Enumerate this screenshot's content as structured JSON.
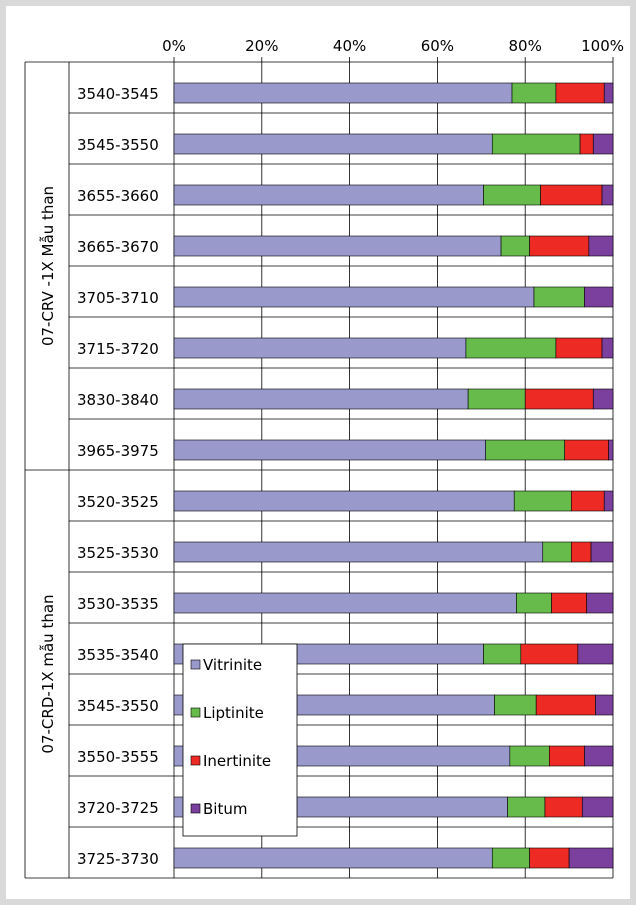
{
  "chart_data": {
    "type": "bar",
    "orientation": "horizontal",
    "stacked": true,
    "percent": true,
    "x_ticks": [
      "0%",
      "20%",
      "40%",
      "60%",
      "80%",
      "100%"
    ],
    "xlim": [
      0,
      100
    ],
    "grid": true,
    "legend_position": "bottom-left",
    "groups": [
      {
        "label": "07-CRV -1X Mẫu than",
        "start": 0,
        "count": 8
      },
      {
        "label": "07-CRD-1X mẫu than",
        "start": 8,
        "count": 8
      }
    ],
    "categories": [
      "3540-3545",
      "3545-3550",
      "3655-3660",
      "3665-3670",
      "3705-3710",
      "3715-3720",
      "3830-3840",
      "3965-3975",
      "3520-3525",
      "3525-3530",
      "3530-3535",
      "3535-3540",
      "3545-3550",
      "3550-3555",
      "3720-3725",
      "3725-3730"
    ],
    "series": [
      {
        "name": "Vitrinite",
        "color": "#9999cc",
        "values": [
          77,
          72.5,
          70.5,
          74.5,
          82,
          66.5,
          67,
          71,
          77.5,
          84,
          78,
          70.5,
          73,
          76.5,
          76,
          72.5
        ]
      },
      {
        "name": "Liptinite",
        "color": "#66bb4a",
        "values": [
          10,
          20,
          13,
          6.5,
          11.5,
          20.5,
          13,
          18,
          13,
          6.5,
          8,
          8.5,
          9.5,
          9,
          8.5,
          8.5
        ]
      },
      {
        "name": "Inertinite",
        "color": "#ee2a24",
        "values": [
          11,
          3,
          14,
          13.5,
          0,
          10.5,
          15.5,
          10,
          7.5,
          4.5,
          8,
          13,
          13.5,
          8,
          8.5,
          9
        ]
      },
      {
        "name": "Bitum",
        "color": "#7b3f9e",
        "values": [
          2,
          4.5,
          2.5,
          5.5,
          6.5,
          2.5,
          4.5,
          1,
          2,
          5,
          6,
          8,
          4,
          6.5,
          7,
          10
        ]
      }
    ]
  }
}
